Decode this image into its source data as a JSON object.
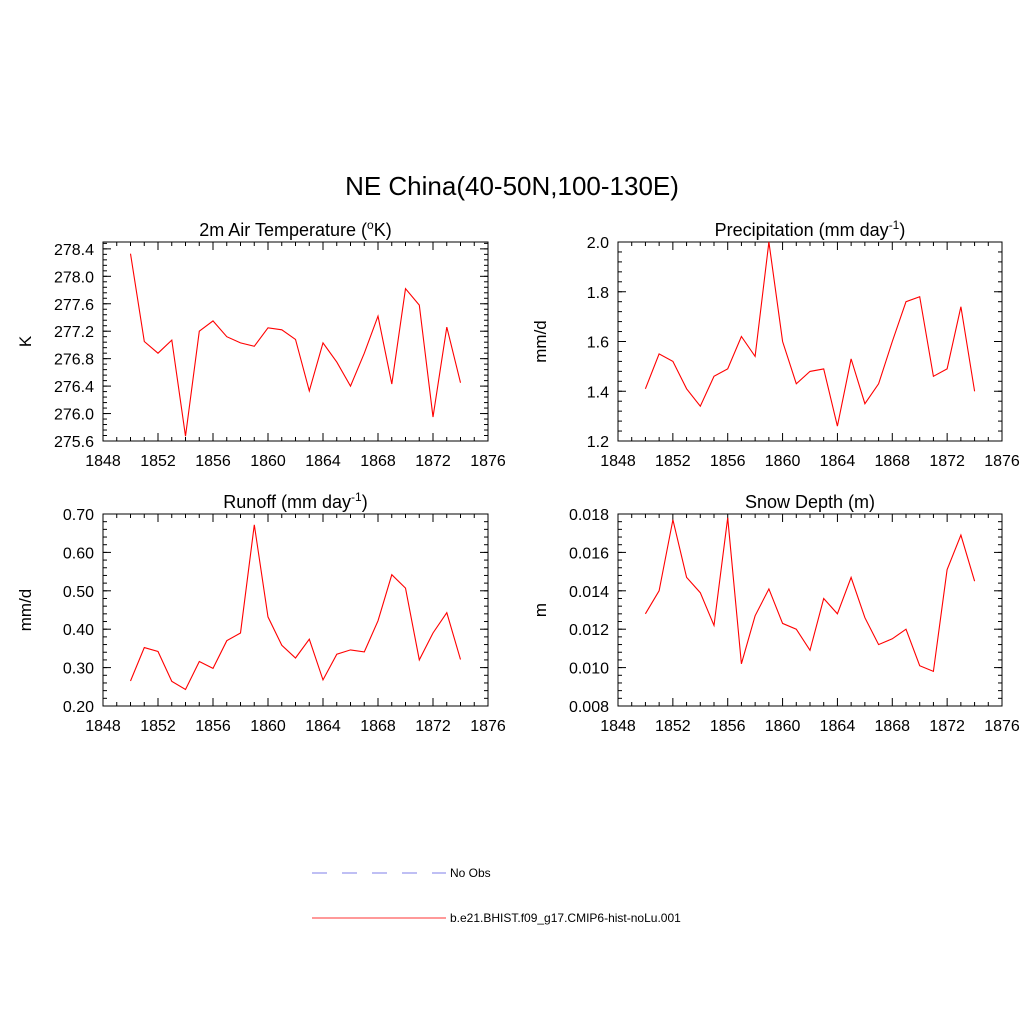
{
  "figure": {
    "title": "NE China(40-50N,100-130E)"
  },
  "legend": {
    "items": [
      {
        "label": "No Obs",
        "color": "#9999ee",
        "dash": true
      },
      {
        "label": "b.e21.BHIST.f09_g17.CMIP6-hist-noLu.001",
        "color": "#ff3333",
        "dash": false
      }
    ]
  },
  "chart_data": [
    {
      "type": "line",
      "title": "2m Air Temperature (",
      "title_sup": "o",
      "title_post": "K)",
      "ylabel": "K",
      "xlim": [
        1848,
        1876
      ],
      "ylim": [
        275.6,
        278.5
      ],
      "xticks": [
        1848,
        1852,
        1856,
        1860,
        1864,
        1868,
        1872,
        1876
      ],
      "yticks": [
        "275.6",
        "276.0",
        "276.4",
        "276.8",
        "277.2",
        "277.6",
        "278.0",
        "278.4"
      ],
      "x": [
        1850,
        1851,
        1852,
        1853,
        1854,
        1855,
        1856,
        1857,
        1858,
        1859,
        1860,
        1861,
        1862,
        1863,
        1864,
        1865,
        1866,
        1867,
        1868,
        1869,
        1870,
        1871,
        1872,
        1873,
        1874
      ],
      "series": [
        {
          "color": "#ff0000",
          "values": [
            278.33,
            277.05,
            276.88,
            277.07,
            275.67,
            277.2,
            277.35,
            277.12,
            277.03,
            276.98,
            277.25,
            277.22,
            277.08,
            276.33,
            277.03,
            276.75,
            276.4,
            276.88,
            277.42,
            276.43,
            277.82,
            277.58,
            275.95,
            277.26,
            276.45
          ]
        }
      ]
    },
    {
      "type": "line",
      "title": "Precipitation (mm day",
      "title_sup": "-1",
      "title_post": ")",
      "ylabel": "mm/d",
      "xlim": [
        1848,
        1876
      ],
      "ylim": [
        1.2,
        2.0
      ],
      "xticks": [
        1848,
        1852,
        1856,
        1860,
        1864,
        1868,
        1872,
        1876
      ],
      "yticks": [
        "1.2",
        "1.4",
        "1.6",
        "1.8",
        "2.0"
      ],
      "x": [
        1850,
        1851,
        1852,
        1853,
        1854,
        1855,
        1856,
        1857,
        1858,
        1859,
        1860,
        1861,
        1862,
        1863,
        1864,
        1865,
        1866,
        1867,
        1868,
        1869,
        1870,
        1871,
        1872,
        1873,
        1874
      ],
      "series": [
        {
          "color": "#ff0000",
          "values": [
            1.41,
            1.55,
            1.52,
            1.41,
            1.34,
            1.46,
            1.49,
            1.62,
            1.54,
            2.0,
            1.6,
            1.43,
            1.48,
            1.49,
            1.26,
            1.53,
            1.35,
            1.43,
            1.6,
            1.76,
            1.78,
            1.46,
            1.49,
            1.74,
            1.4
          ]
        }
      ]
    },
    {
      "type": "line",
      "title": "Runoff (mm day",
      "title_sup": "-1",
      "title_post": ")",
      "ylabel": "mm/d",
      "xlim": [
        1848,
        1876
      ],
      "ylim": [
        0.2,
        0.7
      ],
      "xticks": [
        1848,
        1852,
        1856,
        1860,
        1864,
        1868,
        1872,
        1876
      ],
      "yticks": [
        "0.20",
        "0.30",
        "0.40",
        "0.50",
        "0.60",
        "0.70"
      ],
      "x": [
        1850,
        1851,
        1852,
        1853,
        1854,
        1855,
        1856,
        1857,
        1858,
        1859,
        1860,
        1861,
        1862,
        1863,
        1864,
        1865,
        1866,
        1867,
        1868,
        1869,
        1870,
        1871,
        1872,
        1873,
        1874
      ],
      "series": [
        {
          "color": "#ff0000",
          "values": [
            0.265,
            0.352,
            0.342,
            0.264,
            0.243,
            0.316,
            0.298,
            0.37,
            0.39,
            0.672,
            0.432,
            0.358,
            0.325,
            0.374,
            0.268,
            0.335,
            0.346,
            0.341,
            0.422,
            0.542,
            0.507,
            0.32,
            0.39,
            0.443,
            0.321
          ]
        }
      ]
    },
    {
      "type": "line",
      "title": "Snow Depth (m)",
      "title_sup": "",
      "title_post": "",
      "ylabel": "m",
      "xlim": [
        1848,
        1876
      ],
      "ylim": [
        0.008,
        0.018
      ],
      "xticks": [
        1848,
        1852,
        1856,
        1860,
        1864,
        1868,
        1872,
        1876
      ],
      "yticks": [
        "0.008",
        "0.010",
        "0.012",
        "0.014",
        "0.016",
        "0.018"
      ],
      "x": [
        1850,
        1851,
        1852,
        1853,
        1854,
        1855,
        1856,
        1857,
        1858,
        1859,
        1860,
        1861,
        1862,
        1863,
        1864,
        1865,
        1866,
        1867,
        1868,
        1869,
        1870,
        1871,
        1872,
        1873,
        1874
      ],
      "series": [
        {
          "color": "#ff0000",
          "values": [
            0.0128,
            0.014,
            0.0177,
            0.0147,
            0.0139,
            0.0122,
            0.0178,
            0.0102,
            0.0127,
            0.0141,
            0.0123,
            0.012,
            0.0109,
            0.0136,
            0.0128,
            0.0147,
            0.0126,
            0.0112,
            0.0115,
            0.012,
            0.0101,
            0.0098,
            0.0151,
            0.0169,
            0.0145
          ]
        }
      ]
    }
  ]
}
